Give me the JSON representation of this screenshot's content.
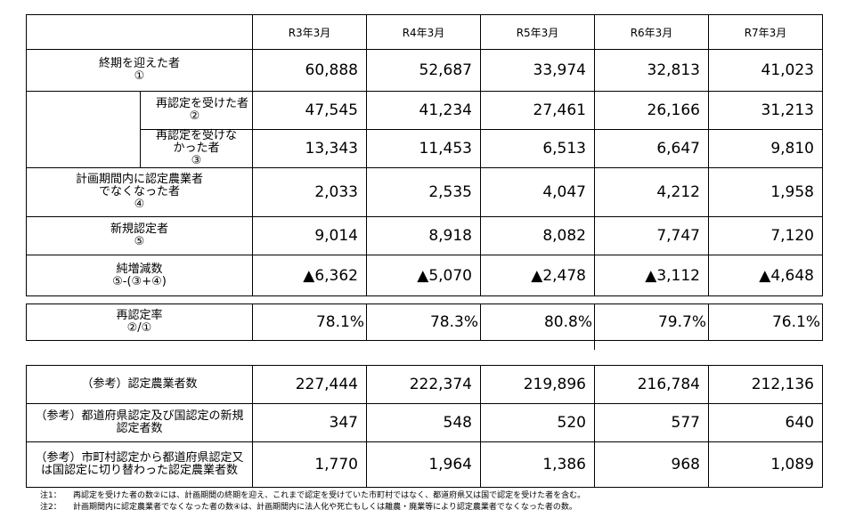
{
  "columns": [
    "R3年3月",
    "R4年3月",
    "R5年3月",
    "R6年3月",
    "R7年3月"
  ],
  "rows": {
    "expired": {
      "label": [
        "終期を迎えた者",
        "①"
      ],
      "values": [
        "60,888",
        "52,687",
        "33,974",
        "32,813",
        "41,023"
      ]
    },
    "renewed": {
      "label": [
        "再認定を受けた者",
        "②"
      ],
      "values": [
        "47,545",
        "41,234",
        "27,461",
        "26,166",
        "31,213"
      ]
    },
    "not_renewed": {
      "label": [
        "再認定を受けな",
        "かった者",
        "③"
      ],
      "values": [
        "13,343",
        "11,453",
        "6,513",
        "6,647",
        "9,810"
      ]
    },
    "lost": {
      "label": [
        "計画期間内に認定農業者",
        "でなくなった者",
        "④"
      ],
      "values": [
        "2,033",
        "2,535",
        "4,047",
        "4,212",
        "1,958"
      ]
    },
    "new": {
      "label": [
        "新規認定者",
        "⑤"
      ],
      "values": [
        "9,014",
        "8,918",
        "8,082",
        "7,747",
        "7,120"
      ]
    },
    "net": {
      "label": [
        "純増減数",
        "⑤-(③+④)"
      ],
      "values": [
        "▲6,362",
        "▲5,070",
        "▲2,478",
        "▲3,112",
        "▲4,648"
      ]
    },
    "rate": {
      "label": [
        "再認定率",
        "②/①"
      ],
      "values": [
        "78.1%",
        "78.3%",
        "80.8%",
        "79.7%",
        "76.1%"
      ]
    },
    "ref_total": {
      "label": [
        "（参考）認定農業者数"
      ],
      "values": [
        "227,444",
        "222,374",
        "219,896",
        "216,784",
        "212,136"
      ]
    },
    "ref_pref_new": {
      "label": [
        "（参考）都道府県認定及び国認定の新規",
        "認定者数"
      ],
      "values": [
        "347",
        "548",
        "520",
        "577",
        "640"
      ]
    },
    "ref_switched": {
      "label": [
        "（参考）市町村認定から都道府県認定又",
        "は国認定に切り替わった認定農業者数"
      ],
      "values": [
        "1,770",
        "1,964",
        "1,386",
        "968",
        "1,089"
      ]
    }
  },
  "notes": [
    {
      "key": "注1：",
      "text": "再認定を受けた者の数②には、計画期間の終期を迎え、これまで認定を受けていた市町村ではなく、都道府県又は国で認定を受けた者を含む。"
    },
    {
      "key": "注2：",
      "text": "計画期間内に認定農業者でなくなった者の数④は、計画期間内に法人化や死亡もしくは離農・廃業等により認定農業者でなくなった者の数。"
    }
  ]
}
